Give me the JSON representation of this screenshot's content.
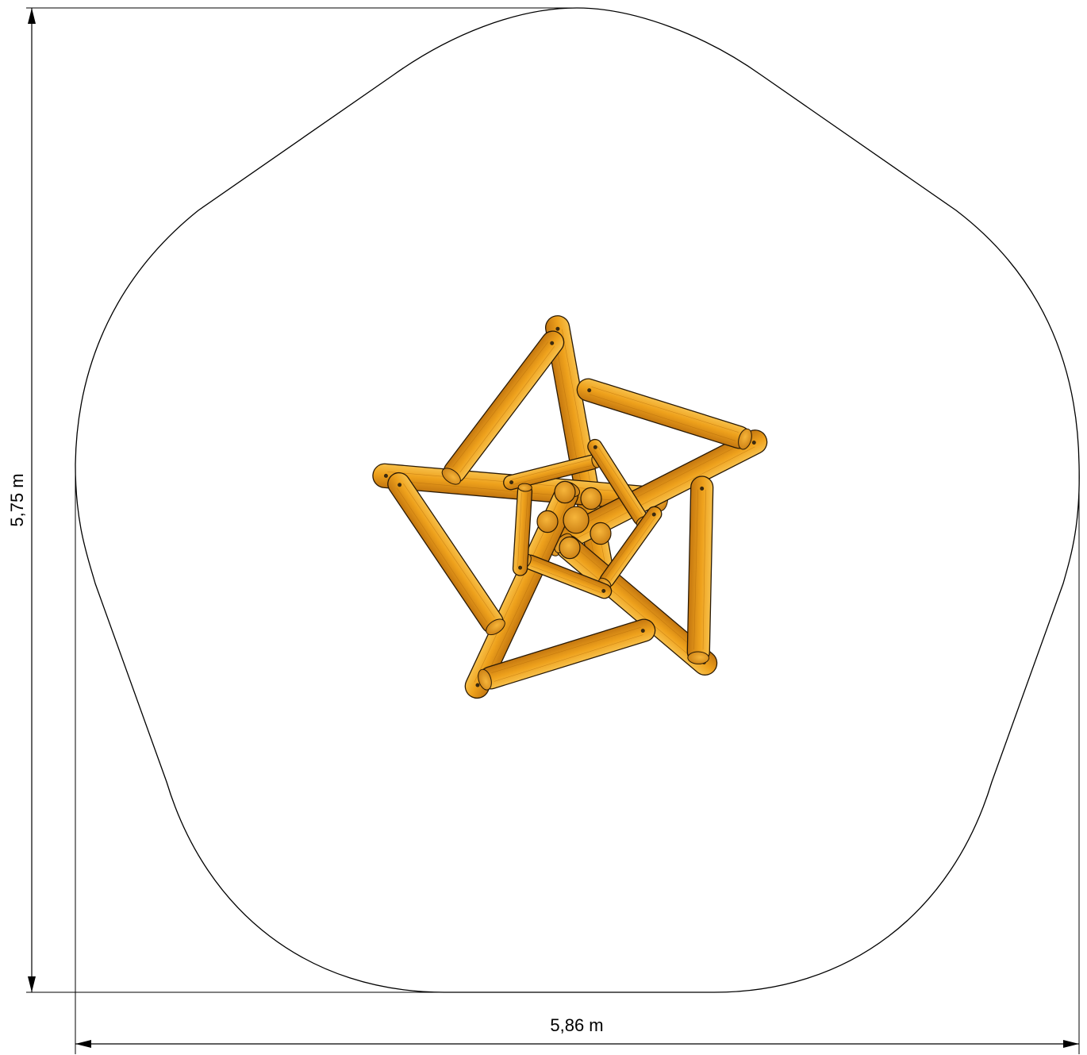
{
  "dimensions": {
    "height_label": "5,75 m",
    "width_label": "5,86 m"
  },
  "colors": {
    "outline": "#000000",
    "wood_light": "#f0a820",
    "wood_mid": "#e08e10",
    "wood_dark": "#b86a08",
    "background": "#ffffff"
  }
}
